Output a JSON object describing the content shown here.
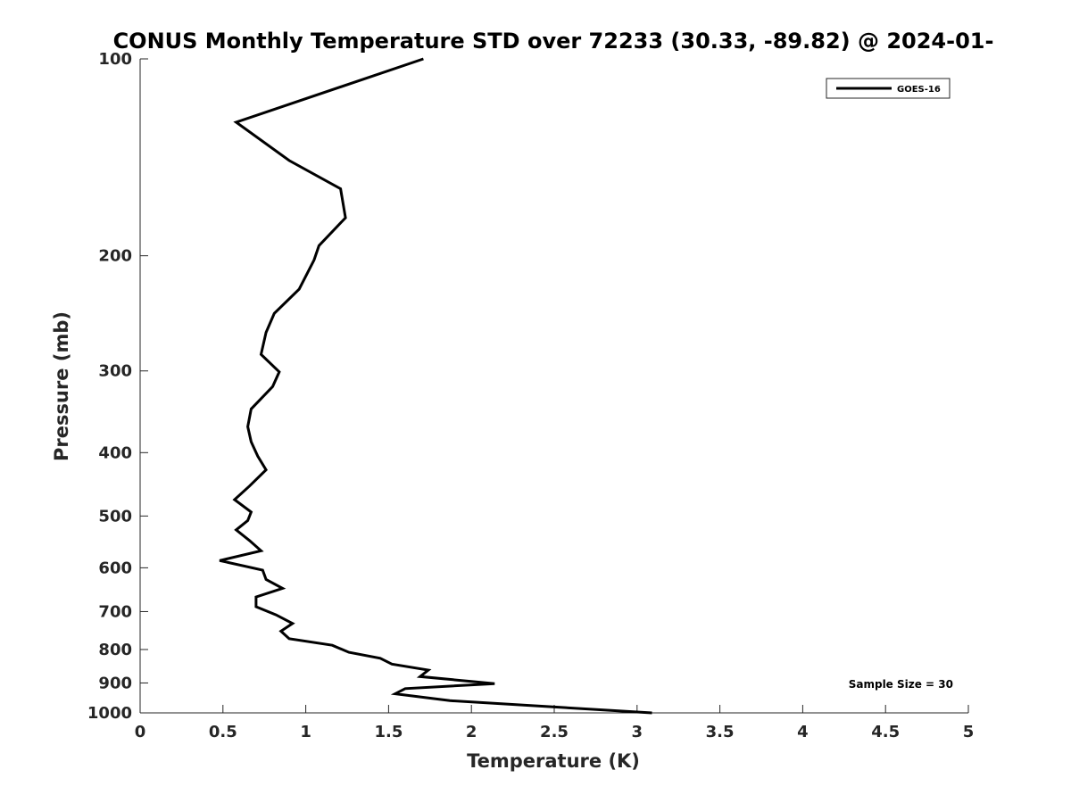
{
  "chart_data": {
    "type": "line",
    "title": "CONUS Monthly Temperature STD over 72233 (30.33, -89.82) @ 2024-01-",
    "xlabel": "Temperature (K)",
    "ylabel": "Pressure (mb)",
    "xlim": [
      0,
      5
    ],
    "ylim": [
      100,
      1000
    ],
    "y_scale": "log",
    "y_reversed": true,
    "x_ticks": [
      "0",
      "0.5",
      "1",
      "1.5",
      "2",
      "2.5",
      "3",
      "3.5",
      "4",
      "4.5",
      "5"
    ],
    "y_ticks": [
      "100",
      "200",
      "300",
      "400",
      "500",
      "600",
      "700",
      "800",
      "900",
      "1000"
    ],
    "grid": false,
    "legend_position": "top-right",
    "annotation": "Sample Size = 30",
    "series": [
      {
        "name": "GOES-16",
        "color": "#000000",
        "points": [
          [
            1.71,
            100
          ],
          [
            0.58,
            125
          ],
          [
            0.9,
            143
          ],
          [
            1.21,
            158
          ],
          [
            1.24,
            175
          ],
          [
            1.08,
            193
          ],
          [
            1.05,
            203
          ],
          [
            0.96,
            225
          ],
          [
            0.81,
            245
          ],
          [
            0.76,
            262
          ],
          [
            0.73,
            283
          ],
          [
            0.84,
            301
          ],
          [
            0.8,
            317
          ],
          [
            0.67,
            343
          ],
          [
            0.65,
            365
          ],
          [
            0.67,
            385
          ],
          [
            0.71,
            405
          ],
          [
            0.76,
            425
          ],
          [
            0.66,
            450
          ],
          [
            0.57,
            472
          ],
          [
            0.67,
            493
          ],
          [
            0.65,
            508
          ],
          [
            0.58,
            525
          ],
          [
            0.66,
            545
          ],
          [
            0.73,
            565
          ],
          [
            0.48,
            585
          ],
          [
            0.74,
            605
          ],
          [
            0.76,
            625
          ],
          [
            0.86,
            645
          ],
          [
            0.7,
            665
          ],
          [
            0.7,
            688
          ],
          [
            0.82,
            708
          ],
          [
            0.92,
            730
          ],
          [
            0.85,
            750
          ],
          [
            0.9,
            770
          ],
          [
            1.16,
            788
          ],
          [
            1.26,
            808
          ],
          [
            1.45,
            825
          ],
          [
            1.52,
            842
          ],
          [
            1.74,
            860
          ],
          [
            1.69,
            880
          ],
          [
            2.14,
            902
          ],
          [
            1.6,
            918
          ],
          [
            1.54,
            935
          ],
          [
            1.87,
            958
          ],
          [
            3.09,
            1000
          ]
        ]
      }
    ]
  }
}
